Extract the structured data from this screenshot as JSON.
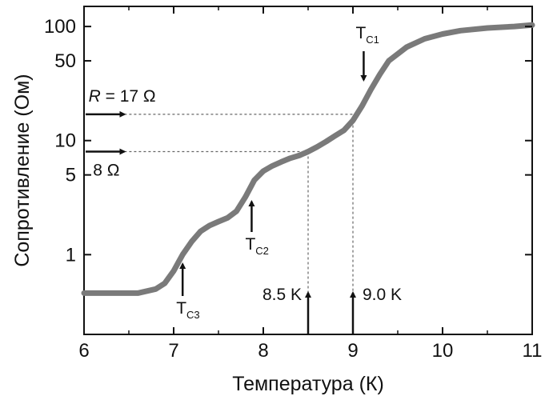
{
  "chart_data": {
    "type": "line",
    "title": "",
    "xlabel": "Температура (К)",
    "ylabel": "Сопротивление (Ом)",
    "xlim": [
      6,
      11
    ],
    "ylim": [
      0.2,
      150
    ],
    "yscale": "log",
    "grid": false,
    "x_ticks": [
      6,
      7,
      8,
      9,
      10,
      11
    ],
    "x_tick_labels": [
      "6",
      "7",
      "8",
      "9",
      "10",
      "11"
    ],
    "y_ticks": [
      1,
      5,
      10,
      50,
      100
    ],
    "y_tick_labels": [
      "1",
      "5",
      "10",
      "50",
      "100"
    ],
    "line_color": "#7a7a7a",
    "series": [
      {
        "name": "",
        "x": [
          6.0,
          6.2,
          6.4,
          6.6,
          6.8,
          6.9,
          7.0,
          7.05,
          7.1,
          7.2,
          7.3,
          7.4,
          7.5,
          7.6,
          7.7,
          7.8,
          7.9,
          8.0,
          8.1,
          8.2,
          8.3,
          8.4,
          8.5,
          8.6,
          8.7,
          8.8,
          8.9,
          9.0,
          9.1,
          9.2,
          9.3,
          9.4,
          9.6,
          9.8,
          10.0,
          10.2,
          10.5,
          10.8,
          11.0
        ],
        "y": [
          0.46,
          0.46,
          0.46,
          0.46,
          0.5,
          0.56,
          0.72,
          0.85,
          1.0,
          1.3,
          1.6,
          1.8,
          1.95,
          2.1,
          2.4,
          3.2,
          4.5,
          5.4,
          6.0,
          6.5,
          7.0,
          7.4,
          8.0,
          8.8,
          9.8,
          11.0,
          12.3,
          15.0,
          20.0,
          28.0,
          38.0,
          50.0,
          66.0,
          78.0,
          86.0,
          92.0,
          97.0,
          100.0,
          103.0
        ]
      }
    ],
    "reference_lines": [
      {
        "axis": "y",
        "value": 17
      },
      {
        "axis": "y",
        "value": 8
      },
      {
        "axis": "x",
        "value": 8.5
      },
      {
        "axis": "x",
        "value": 9.0
      }
    ],
    "annotations": {
      "r17": {
        "prefix": "R",
        "text": " = 17 Ω",
        "y": 17
      },
      "r8": {
        "text": "8 Ω",
        "y": 8
      },
      "tc1": {
        "main": "T",
        "sub": "C1",
        "x": 9.12
      },
      "tc2": {
        "main": "T",
        "sub": "C2",
        "x": 7.87
      },
      "tc3": {
        "main": "T",
        "sub": "C3",
        "x": 7.1
      },
      "k85": {
        "text": "8.5 K",
        "x": 8.5
      },
      "k90": {
        "text": "9.0 K",
        "x": 9.0
      }
    }
  }
}
